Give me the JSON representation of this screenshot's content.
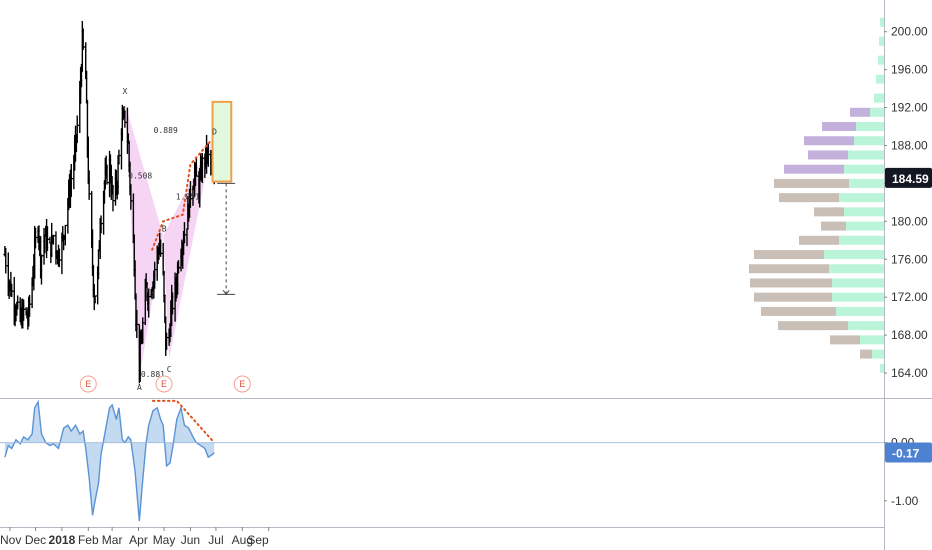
{
  "chart_data": [
    {
      "type": "ohlc",
      "x_labels": [
        "Nov",
        "Dec",
        "2018",
        "Feb",
        "Mar",
        "Apr",
        "May",
        "Jun",
        "Jul",
        "Aug",
        "Sep"
      ],
      "y_ticks": [
        "164.00",
        "168.00",
        "172.00",
        "176.00",
        "180.00",
        "184.00",
        "188.00",
        "192.00",
        "196.00",
        "200.00"
      ],
      "ylim": [
        162,
        202.5
      ],
      "last_price": "184.59",
      "price_path": [
        [
          "2017-10-26",
          176.5
        ],
        [
          "2017-10-30",
          174
        ],
        [
          "2017-11-03",
          172.5
        ],
        [
          "2017-11-08",
          171
        ],
        [
          "2017-11-13",
          169.5
        ],
        [
          "2017-11-17",
          170.5
        ],
        [
          "2017-11-22",
          169.8
        ],
        [
          "2017-11-27",
          173.5
        ],
        [
          "2017-11-30",
          177
        ],
        [
          "2017-12-04",
          180
        ],
        [
          "2017-12-07",
          176
        ],
        [
          "2017-12-12",
          178.5
        ],
        [
          "2017-12-18",
          177
        ],
        [
          "2017-12-22",
          178.5
        ],
        [
          "2017-12-27",
          176.5
        ],
        [
          "2018-01-02",
          178
        ],
        [
          "2018-01-08",
          182
        ],
        [
          "2018-01-11",
          184
        ],
        [
          "2018-01-16",
          187
        ],
        [
          "2018-01-19",
          190
        ],
        [
          "2018-01-22",
          193
        ],
        [
          "2018-01-25",
          199
        ],
        [
          "2018-01-29",
          195
        ],
        [
          "2018-01-31",
          188
        ],
        [
          "2018-02-02",
          182
        ],
        [
          "2018-02-05",
          177
        ],
        [
          "2018-02-08",
          172
        ],
        [
          "2018-02-12",
          174
        ],
        [
          "2018-02-15",
          180
        ],
        [
          "2018-02-20",
          184
        ],
        [
          "2018-02-26",
          186
        ],
        [
          "2018-03-02",
          182
        ],
        [
          "2018-03-07",
          184.5
        ],
        [
          "2018-03-12",
          190
        ],
        [
          "2018-03-16",
          191
        ],
        [
          "2018-03-20",
          188
        ],
        [
          "2018-03-23",
          182
        ],
        [
          "2018-03-27",
          176
        ],
        [
          "2018-03-29",
          170
        ],
        [
          "2018-04-02",
          165
        ],
        [
          "2018-04-05",
          168
        ],
        [
          "2018-04-10",
          173
        ],
        [
          "2018-04-13",
          172
        ],
        [
          "2018-04-18",
          174
        ],
        [
          "2018-04-23",
          176.5
        ],
        [
          "2018-04-26",
          177.5
        ],
        [
          "2018-04-30",
          174
        ],
        [
          "2018-05-03",
          167
        ],
        [
          "2018-05-07",
          168
        ],
        [
          "2018-05-10",
          171
        ],
        [
          "2018-05-15",
          173
        ],
        [
          "2018-05-18",
          176
        ],
        [
          "2018-05-23",
          178
        ],
        [
          "2018-05-28",
          180
        ],
        [
          "2018-06-01",
          183
        ],
        [
          "2018-06-06",
          185
        ],
        [
          "2018-06-11",
          183.5
        ],
        [
          "2018-06-15",
          186
        ],
        [
          "2018-06-20",
          187
        ],
        [
          "2018-06-25",
          186
        ],
        [
          "2018-06-29",
          184.59
        ]
      ],
      "pattern_points": [
        {
          "label": "X",
          "x": "2018-03-16",
          "y": 192.5
        },
        {
          "label": "A",
          "x": "2018-04-02",
          "y": 163.5
        },
        {
          "label": "B",
          "x": "2018-04-30",
          "y": 178.5
        },
        {
          "label": "C",
          "x": "2018-05-07",
          "y": 165.5
        },
        {
          "label": "D",
          "x": "2018-06-27",
          "y": 188.5
        }
      ],
      "ratios": [
        {
          "text": "0.508",
          "x": "2018-04-03",
          "y": 184.5
        },
        {
          "text": "0.889",
          "x": "2018-05-03",
          "y": 189.3
        },
        {
          "text": "0.881",
          "x": "2018-04-18",
          "y": 163.6
        },
        {
          "text": "1.851",
          "x": "2018-05-29",
          "y": 182.3
        }
      ],
      "trendline": [
        [
          "2018-04-17",
          177
        ],
        [
          "2018-04-30",
          180
        ],
        [
          "2018-05-23",
          180.7
        ],
        [
          "2018-06-01",
          186
        ],
        [
          "2018-06-25",
          188.5
        ]
      ],
      "target_zone": {
        "x_from": "2018-06-27",
        "x_to": "2018-07-19",
        "y_from": 184.2,
        "y_to": 192.6
      },
      "measure": {
        "x": "2018-07-13",
        "y_from": 184,
        "y_to": 172.3
      },
      "earnings": [
        {
          "text": "E",
          "x": "2018-02-01"
        },
        {
          "text": "E",
          "x": "2018-05-01"
        },
        {
          "text": "E",
          "x": "2018-08-01"
        }
      ],
      "volume_profile": [
        {
          "price": 201,
          "up": 4,
          "down": 0
        },
        {
          "price": 199,
          "up": 5,
          "down": 0
        },
        {
          "price": 197,
          "up": 6,
          "down": 0
        },
        {
          "price": 195,
          "up": 8,
          "down": 0
        },
        {
          "price": 193,
          "up": 10,
          "down": 0
        },
        {
          "price": 191.5,
          "up": 14,
          "down": 20
        },
        {
          "price": 190,
          "up": 28,
          "down": 34
        },
        {
          "price": 188.5,
          "up": 30,
          "down": 50
        },
        {
          "price": 187,
          "up": 36,
          "down": 40
        },
        {
          "price": 185.5,
          "up": 40,
          "down": 60
        },
        {
          "price": 184,
          "up": 35,
          "down": 75
        },
        {
          "price": 182.5,
          "up": 45,
          "down": 60
        },
        {
          "price": 181,
          "up": 40,
          "down": 30
        },
        {
          "price": 179.5,
          "up": 38,
          "down": 25
        },
        {
          "price": 178,
          "up": 45,
          "down": 40
        },
        {
          "price": 176.5,
          "up": 60,
          "down": 70
        },
        {
          "price": 175,
          "up": 55,
          "down": 80
        },
        {
          "price": 173.5,
          "up": 52,
          "down": 82
        },
        {
          "price": 172,
          "up": 52,
          "down": 78
        },
        {
          "price": 170.5,
          "up": 48,
          "down": 75
        },
        {
          "price": 169,
          "up": 36,
          "down": 70
        },
        {
          "price": 167.5,
          "up": 24,
          "down": 30
        },
        {
          "price": 166,
          "up": 12,
          "down": 12
        },
        {
          "price": 164.5,
          "up": 4,
          "down": 0
        }
      ],
      "colors": {
        "bars": "#000000",
        "pattern_fill": "#f3c6f0",
        "trendline": "#e0531c",
        "target_fill": "#e2f9dd",
        "target_border": "#f0a04b",
        "volume_up": "#aef3d4",
        "volume_down": "#c9bfb6",
        "volume_purple": "#c3b1dc",
        "price_badge": "#131722"
      }
    },
    {
      "type": "area",
      "y_ticks": [
        "0.00",
        "-1.00"
      ],
      "ylim": [
        -1.4,
        0.7
      ],
      "last_value": "-0.17",
      "values": [
        [
          "2017-10-26",
          -0.25
        ],
        [
          "2017-10-30",
          -0.05
        ],
        [
          "2017-11-03",
          -0.1
        ],
        [
          "2017-11-08",
          0.05
        ],
        [
          "2017-11-13",
          -0.02
        ],
        [
          "2017-11-17",
          0.1
        ],
        [
          "2017-11-22",
          0.05
        ],
        [
          "2017-11-27",
          0.15
        ],
        [
          "2017-11-30",
          0.6
        ],
        [
          "2017-12-04",
          0.7
        ],
        [
          "2017-12-08",
          0.15
        ],
        [
          "2017-12-13",
          0.0
        ],
        [
          "2017-12-18",
          -0.05
        ],
        [
          "2017-12-22",
          -0.02
        ],
        [
          "2017-12-28",
          -0.1
        ],
        [
          "2018-01-03",
          0.25
        ],
        [
          "2018-01-08",
          0.3
        ],
        [
          "2018-01-12",
          0.2
        ],
        [
          "2018-01-17",
          0.3
        ],
        [
          "2018-01-22",
          0.15
        ],
        [
          "2018-01-26",
          0.2
        ],
        [
          "2018-01-29",
          -0.1
        ],
        [
          "2018-02-02",
          -0.6
        ],
        [
          "2018-02-06",
          -1.25
        ],
        [
          "2018-02-09",
          -1.0
        ],
        [
          "2018-02-13",
          -0.7
        ],
        [
          "2018-02-16",
          -0.2
        ],
        [
          "2018-02-21",
          0.2
        ],
        [
          "2018-02-26",
          0.6
        ],
        [
          "2018-03-01",
          0.65
        ],
        [
          "2018-03-06",
          0.4
        ],
        [
          "2018-03-09",
          0.6
        ],
        [
          "2018-03-13",
          0.05
        ],
        [
          "2018-03-16",
          0.0
        ],
        [
          "2018-03-20",
          0.1
        ],
        [
          "2018-03-23",
          0.05
        ],
        [
          "2018-03-28",
          -0.5
        ],
        [
          "2018-04-02",
          -1.35
        ],
        [
          "2018-04-05",
          -0.8
        ],
        [
          "2018-04-10",
          0.0
        ],
        [
          "2018-04-13",
          0.3
        ],
        [
          "2018-04-18",
          0.55
        ],
        [
          "2018-04-23",
          0.6
        ],
        [
          "2018-04-27",
          0.4
        ],
        [
          "2018-04-30",
          0.3
        ],
        [
          "2018-05-04",
          -0.4
        ],
        [
          "2018-05-08",
          -0.35
        ],
        [
          "2018-05-11",
          -0.1
        ],
        [
          "2018-05-16",
          0.4
        ],
        [
          "2018-05-21",
          0.6
        ],
        [
          "2018-05-25",
          0.3
        ],
        [
          "2018-05-30",
          0.25
        ],
        [
          "2018-06-04",
          0.1
        ],
        [
          "2018-06-08",
          0.0
        ],
        [
          "2018-06-13",
          -0.05
        ],
        [
          "2018-06-18",
          -0.1
        ],
        [
          "2018-06-22",
          -0.25
        ],
        [
          "2018-06-27",
          -0.2
        ],
        [
          "2018-06-29",
          -0.17
        ]
      ],
      "trendline": [
        [
          "2018-04-18",
          0.72
        ],
        [
          "2018-05-16",
          0.72
        ],
        [
          "2018-06-29",
          0.0
        ]
      ],
      "colors": {
        "fill": "#bdd6f0",
        "line": "#5a93d6",
        "trendline": "#e0531c",
        "value_badge": "#4c82d1"
      }
    }
  ]
}
